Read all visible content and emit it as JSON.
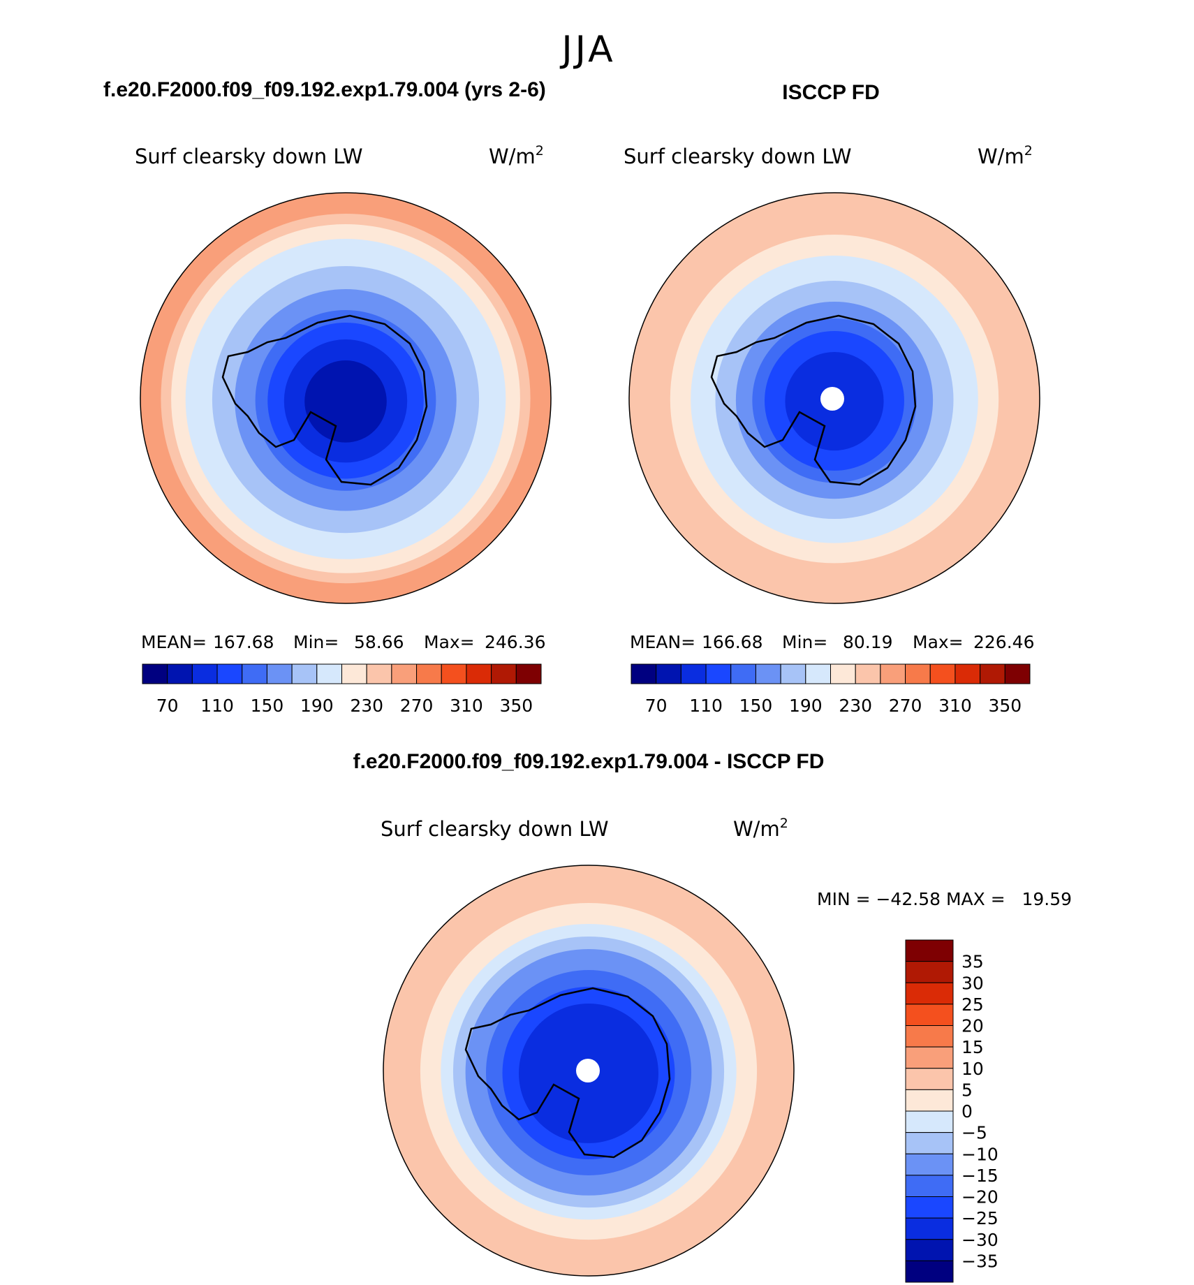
{
  "figure": {
    "season": "JJA",
    "panels": [
      {
        "id": "model",
        "header": "f.e20.F2000.f09_f09.192.exp1.79.004 (yrs 2-6)",
        "variable": "Surf clearsky down LW",
        "units": "W/m",
        "units_sup": "2",
        "stats": {
          "mean_label": "MEAN=",
          "mean": "167.68",
          "min_label": "Min=",
          "min": "58.66",
          "max_label": "Max=",
          "max": "246.36"
        },
        "pole_hole": false,
        "rings": [
          {
            "r": 1.0,
            "lv": 10
          },
          {
            "r": 0.9,
            "lv": 9
          },
          {
            "r": 0.85,
            "lv": 8
          },
          {
            "r": 0.78,
            "lv": 7
          },
          {
            "r": 0.65,
            "lv": 6
          },
          {
            "r": 0.54,
            "lv": 5
          },
          {
            "r": 0.44,
            "lv": 4
          },
          {
            "r": 0.38,
            "lv": 3
          },
          {
            "r": 0.3,
            "lv": 2
          },
          {
            "r": 0.2,
            "lv": 1
          }
        ]
      },
      {
        "id": "obs",
        "header": "ISCCP FD",
        "variable": "Surf clearsky down LW",
        "units": "W/m",
        "units_sup": "2",
        "stats": {
          "mean_label": "MEAN=",
          "mean": "166.68",
          "min_label": "Min=",
          "min": "80.19",
          "max_label": "Max=",
          "max": "226.46"
        },
        "pole_hole": true,
        "rings": [
          {
            "r": 1.0,
            "lv": 9
          },
          {
            "r": 0.8,
            "lv": 8
          },
          {
            "r": 0.7,
            "lv": 7
          },
          {
            "r": 0.58,
            "lv": 6
          },
          {
            "r": 0.48,
            "lv": 5
          },
          {
            "r": 0.4,
            "lv": 4
          },
          {
            "r": 0.34,
            "lv": 3
          },
          {
            "r": 0.24,
            "lv": 2
          }
        ]
      }
    ],
    "top_colorbar": {
      "colors": [
        "#000080",
        "#0014b0",
        "#0a2de0",
        "#1a47ff",
        "#3f6cf5",
        "#6b92f5",
        "#a7c3f7",
        "#d6e8fc",
        "#fde8d8",
        "#fbc5ab",
        "#f99f7a",
        "#f77a4a",
        "#f4501e",
        "#da2b06",
        "#b01904",
        "#7e0002"
      ],
      "tick_labels": [
        "70",
        "110",
        "150",
        "190",
        "230",
        "270",
        "310",
        "350"
      ]
    },
    "difference": {
      "header": "f.e20.F2000.f09_f09.192.exp1.79.004 - ISCCP FD",
      "variable": "Surf clearsky down LW",
      "units": "W/m",
      "units_sup": "2",
      "minmax": "MIN = −42.58 MAX =   19.59",
      "pole_hole": true,
      "rings": [
        {
          "r": 1.0,
          "lv": 9
        },
        {
          "r": 0.82,
          "lv": 8
        },
        {
          "r": 0.72,
          "lv": 7
        },
        {
          "r": 0.66,
          "lv": 6
        },
        {
          "r": 0.6,
          "lv": 5
        },
        {
          "r": 0.5,
          "lv": 4
        },
        {
          "r": 0.42,
          "lv": 3
        },
        {
          "r": 0.34,
          "lv": 2
        }
      ],
      "colorbar": {
        "colors": [
          "#7e0002",
          "#b01904",
          "#da2b06",
          "#f4501e",
          "#f77a4a",
          "#f99f7a",
          "#fbc5ab",
          "#fde8d8",
          "#d6e8fc",
          "#a7c3f7",
          "#6b92f5",
          "#3f6cf5",
          "#1a47ff",
          "#0a2de0",
          "#0014b0",
          "#000080"
        ],
        "tick_labels": [
          "35",
          "30",
          "25",
          "20",
          "15",
          "10",
          "5",
          "0",
          "−5",
          "−10",
          "−15",
          "−20",
          "−25",
          "−30",
          "−35"
        ]
      }
    }
  }
}
